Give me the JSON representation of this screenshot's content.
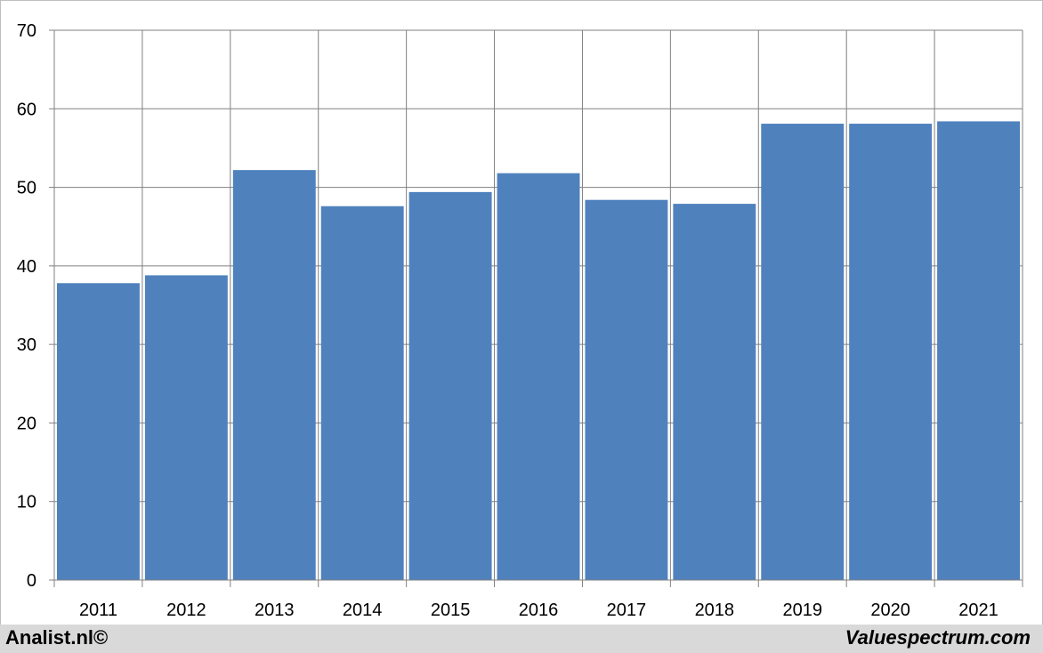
{
  "chart_data": {
    "type": "bar",
    "categories": [
      "2011",
      "2012",
      "2013",
      "2014",
      "2015",
      "2016",
      "2017",
      "2018",
      "2019",
      "2020",
      "2021"
    ],
    "values": [
      37.8,
      38.8,
      52.2,
      47.6,
      49.4,
      51.8,
      48.4,
      47.9,
      58.1,
      58.1,
      58.4
    ],
    "ylim": [
      0,
      70
    ],
    "yticks": [
      0,
      10,
      20,
      30,
      40,
      50,
      60,
      70
    ],
    "grid": true,
    "bar_color": "#4f81bd",
    "grid_color": "#808080"
  },
  "footer": {
    "left_text": "Analist.nl©",
    "right_text": "Valuespectrum.com"
  }
}
